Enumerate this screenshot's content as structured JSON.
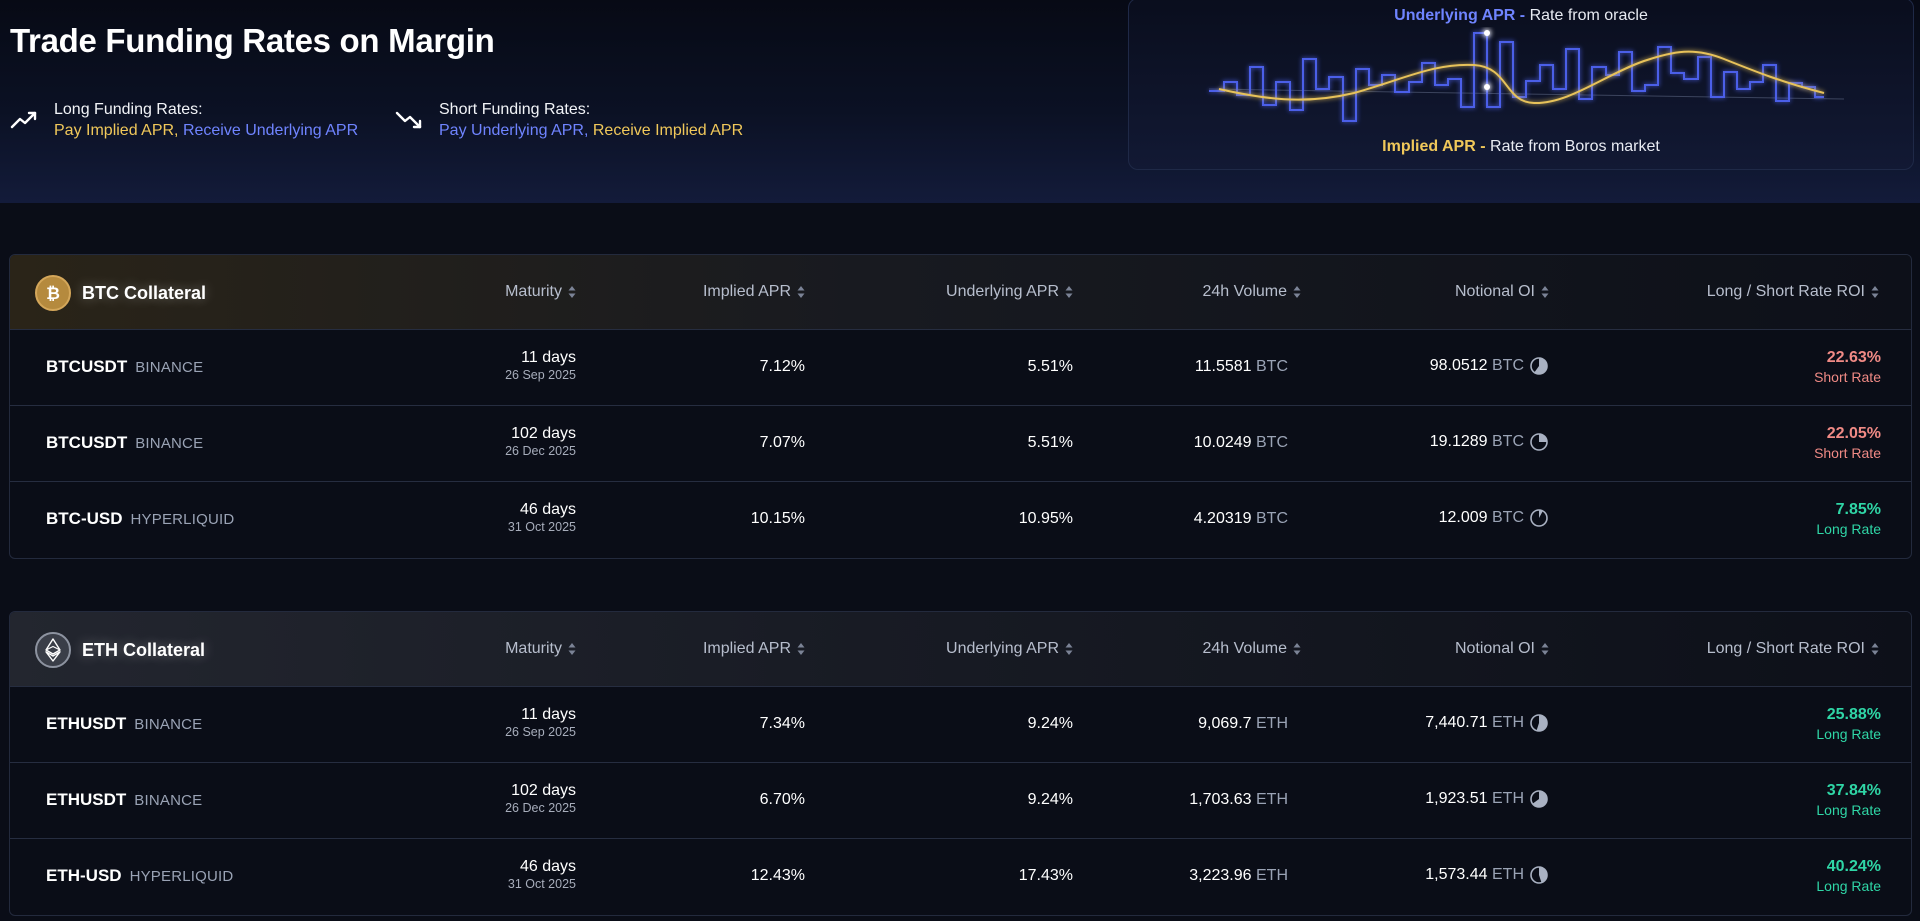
{
  "hero": {
    "title": "Trade Funding Rates on Margin",
    "long": {
      "title": "Long Funding Rates:",
      "pay": "Pay Implied APR,",
      "receive": "Receive Underlying APR"
    },
    "short": {
      "title": "Short Funding Rates:",
      "pay": "Pay Underlying APR,",
      "receive": "Receive Implied APR"
    }
  },
  "apr_card": {
    "underlying_label": "Underlying APR -",
    "underlying_desc": "Rate from oracle",
    "implied_label": "Implied APR -",
    "implied_desc": "Rate from Boros market"
  },
  "columns": {
    "maturity": "Maturity",
    "implied": "Implied APR",
    "underlying": "Underlying APR",
    "volume": "24h Volume",
    "oi": "Notional OI",
    "roi": "Long / Short Rate ROI"
  },
  "colors": {
    "implied": "#f0c85a",
    "underlying": "#6f84ff",
    "short": "#f08a85",
    "long": "#2fd6a6"
  },
  "btc": {
    "label": "BTC Collateral",
    "icon": "bitcoin-icon",
    "rows": [
      {
        "symbol": "BTCUSDT",
        "exchange": "BINANCE",
        "days": "11 days",
        "date": "26 Sep 2025",
        "implied": "7.12%",
        "underlying": "5.51%",
        "volume": "11.5581",
        "volume_unit": "BTC",
        "oi": "98.0512",
        "oi_unit": "BTC",
        "oi_fraction": 0.6,
        "roi": "22.63%",
        "roi_label": "Short Rate",
        "side": "short"
      },
      {
        "symbol": "BTCUSDT",
        "exchange": "BINANCE",
        "days": "102 days",
        "date": "26 Dec 2025",
        "implied": "7.07%",
        "underlying": "5.51%",
        "volume": "10.0249",
        "volume_unit": "BTC",
        "oi": "19.1289",
        "oi_unit": "BTC",
        "oi_fraction": 0.25,
        "roi": "22.05%",
        "roi_label": "Short Rate",
        "side": "short"
      },
      {
        "symbol": "BTC-USD",
        "exchange": "HYPERLIQUID",
        "days": "46 days",
        "date": "31 Oct 2025",
        "implied": "10.15%",
        "underlying": "10.95%",
        "volume": "4.20319",
        "volume_unit": "BTC",
        "oi": "12.009",
        "oi_unit": "BTC",
        "oi_fraction": 0.08,
        "roi": "7.85%",
        "roi_label": "Long Rate",
        "side": "long"
      }
    ]
  },
  "eth": {
    "label": "ETH Collateral",
    "icon": "ethereum-icon",
    "rows": [
      {
        "symbol": "ETHUSDT",
        "exchange": "BINANCE",
        "days": "11 days",
        "date": "26 Sep 2025",
        "implied": "7.34%",
        "underlying": "9.24%",
        "volume": "9,069.7",
        "volume_unit": "ETH",
        "oi": "7,440.71",
        "oi_unit": "ETH",
        "oi_fraction": 0.55,
        "roi": "25.88%",
        "roi_label": "Long Rate",
        "side": "long"
      },
      {
        "symbol": "ETHUSDT",
        "exchange": "BINANCE",
        "days": "102 days",
        "date": "26 Dec 2025",
        "implied": "6.70%",
        "underlying": "9.24%",
        "volume": "1,703.63",
        "volume_unit": "ETH",
        "oi": "1,923.51",
        "oi_unit": "ETH",
        "oi_fraction": 0.65,
        "roi": "37.84%",
        "roi_label": "Long Rate",
        "side": "long"
      },
      {
        "symbol": "ETH-USD",
        "exchange": "HYPERLIQUID",
        "days": "46 days",
        "date": "31 Oct 2025",
        "implied": "12.43%",
        "underlying": "17.43%",
        "volume": "3,223.96",
        "volume_unit": "ETH",
        "oi": "1,573.44",
        "oi_unit": "ETH",
        "oi_fraction": 0.45,
        "roi": "40.24%",
        "roi_label": "Long Rate",
        "side": "long"
      }
    ]
  }
}
